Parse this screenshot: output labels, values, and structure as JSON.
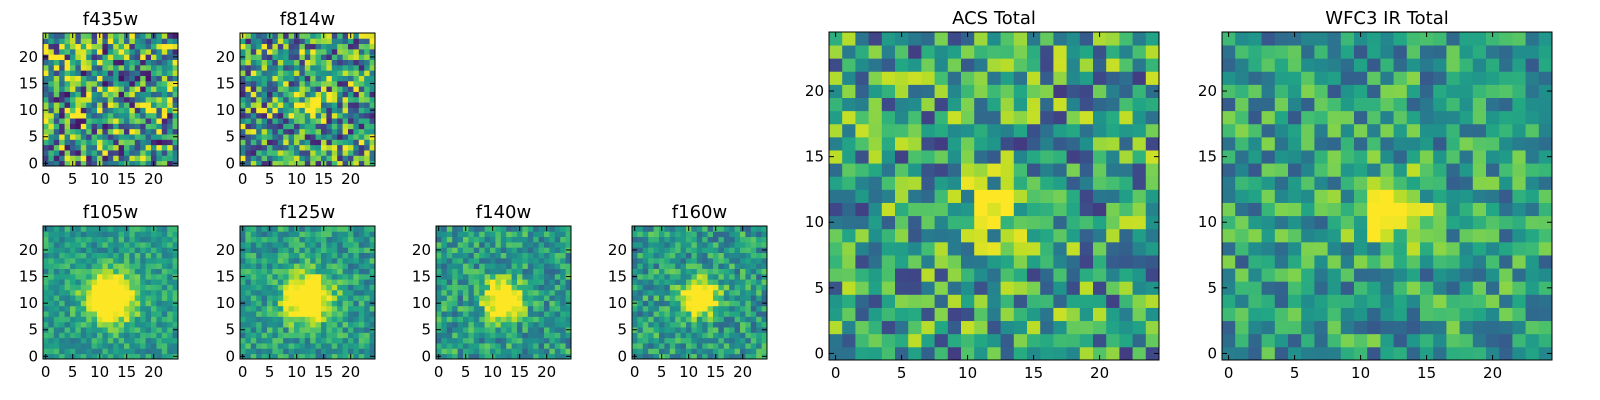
{
  "chart_data": [
    {
      "type": "heatmap",
      "title": "f435w",
      "colormap": "viridis",
      "grid_size": 25,
      "x_ticks": [
        "0",
        "5",
        "10",
        "15",
        "20"
      ],
      "y_ticks": [
        "0",
        "5",
        "10",
        "15",
        "20"
      ],
      "peak": {
        "x": 12,
        "y": 11
      },
      "peak_width": 0,
      "peak_strength": 0.0,
      "noise": 1.0,
      "seed": 11
    },
    {
      "type": "heatmap",
      "title": "f814w",
      "colormap": "viridis",
      "grid_size": 25,
      "x_ticks": [
        "0",
        "5",
        "10",
        "15",
        "20"
      ],
      "y_ticks": [
        "0",
        "5",
        "10",
        "15",
        "20"
      ],
      "peak": {
        "x": 12,
        "y": 11
      },
      "peak_width": 2.0,
      "peak_strength": 0.35,
      "noise": 0.9,
      "seed": 22
    },
    {
      "type": "heatmap",
      "title": "f105w",
      "colormap": "viridis",
      "grid_size": 25,
      "x_ticks": [
        "0",
        "5",
        "10",
        "15",
        "20"
      ],
      "y_ticks": [
        "0",
        "5",
        "10",
        "15",
        "20"
      ],
      "peak": {
        "x": 12,
        "y": 11
      },
      "peak_width": 3.2,
      "peak_strength": 0.85,
      "noise": 0.35,
      "seed": 33
    },
    {
      "type": "heatmap",
      "title": "f125w",
      "colormap": "viridis",
      "grid_size": 25,
      "x_ticks": [
        "0",
        "5",
        "10",
        "15",
        "20"
      ],
      "y_ticks": [
        "0",
        "5",
        "10",
        "15",
        "20"
      ],
      "peak": {
        "x": 12,
        "y": 11
      },
      "peak_width": 3.0,
      "peak_strength": 0.85,
      "noise": 0.4,
      "seed": 44
    },
    {
      "type": "heatmap",
      "title": "f140w",
      "colormap": "viridis",
      "grid_size": 25,
      "x_ticks": [
        "0",
        "5",
        "10",
        "15",
        "20"
      ],
      "y_ticks": [
        "0",
        "5",
        "10",
        "15",
        "20"
      ],
      "peak": {
        "x": 12,
        "y": 11
      },
      "peak_width": 2.4,
      "peak_strength": 0.8,
      "noise": 0.45,
      "seed": 55
    },
    {
      "type": "heatmap",
      "title": "f160w",
      "colormap": "viridis",
      "grid_size": 25,
      "x_ticks": [
        "0",
        "5",
        "10",
        "15",
        "20"
      ],
      "y_ticks": [
        "0",
        "5",
        "10",
        "15",
        "20"
      ],
      "peak": {
        "x": 12,
        "y": 11
      },
      "peak_width": 2.2,
      "peak_strength": 0.85,
      "noise": 0.45,
      "seed": 66
    },
    {
      "type": "heatmap",
      "title": "ACS Total",
      "colormap": "viridis",
      "grid_size": 25,
      "x_ticks": [
        "0",
        "5",
        "10",
        "15",
        "20"
      ],
      "y_ticks": [
        "0",
        "5",
        "10",
        "15",
        "20"
      ],
      "peak": {
        "x": 12,
        "y": 11
      },
      "peak_width": 1.4,
      "peak_strength": 0.55,
      "noise": 0.75,
      "seed": 77
    },
    {
      "type": "heatmap",
      "title": "WFC3 IR Total",
      "colormap": "viridis",
      "grid_size": 25,
      "x_ticks": [
        "0",
        "5",
        "10",
        "15",
        "20"
      ],
      "y_ticks": [
        "0",
        "5",
        "10",
        "15",
        "20"
      ],
      "peak": {
        "x": 12,
        "y": 11
      },
      "peak_width": 1.8,
      "peak_strength": 0.6,
      "noise": 0.55,
      "seed": 88
    }
  ]
}
